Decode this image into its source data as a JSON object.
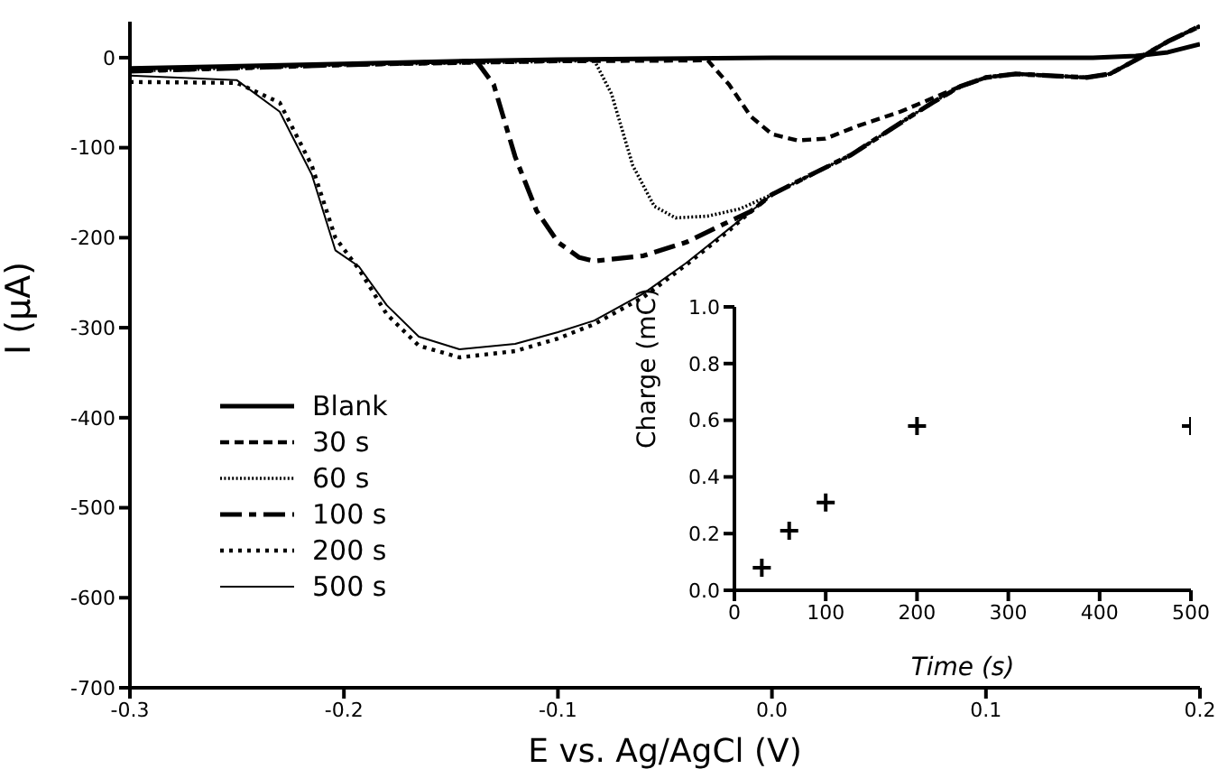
{
  "chart_data": [
    {
      "type": "line",
      "xlabel": "E vs. Ag/AgCl (V)",
      "ylabel": "I (µA)",
      "xlim": [
        -0.3,
        0.2
      ],
      "xticks": [
        -0.3,
        -0.2,
        -0.1,
        {
          "value": 0,
          "label": "0.0"
        },
        0.1,
        0.2
      ],
      "ylim": [
        -700,
        40
      ],
      "yticks": [
        0,
        -100,
        -200,
        -300,
        -400,
        -500,
        -600,
        -700
      ],
      "legend": "bottom left",
      "series": [
        {
          "name": "Blank",
          "color": "#000000",
          "line_style": "solid",
          "x": [
            -0.3,
            -0.2,
            -0.15,
            -0.1,
            0,
            0.15,
            0.17,
            0.185,
            0.2
          ],
          "values": [
            -12,
            -7,
            -4,
            -2,
            0,
            0,
            2,
            6,
            15
          ]
        },
        {
          "name": "30 s",
          "color": "#000000",
          "line_style": "dashed",
          "x": [
            -0.3,
            -0.2,
            -0.1,
            -0.03,
            -0.02,
            -0.01,
            0,
            0.012,
            0.025,
            0.04,
            0.06,
            0.075,
            0.088,
            0.1,
            0.114,
            0.13,
            0.147,
            0.158,
            0.172,
            0.185,
            0.2
          ],
          "values": [
            -15,
            -8,
            -4,
            -3,
            -30,
            -65,
            -85,
            -92,
            -90,
            -76,
            -60,
            -45,
            -32,
            -22,
            -18,
            -20,
            -22,
            -18,
            0,
            18,
            35
          ]
        },
        {
          "name": "60 s",
          "color": "#000000",
          "line_style": "dotted",
          "x": [
            -0.3,
            -0.2,
            -0.1,
            -0.083,
            -0.075,
            -0.065,
            -0.055,
            -0.045,
            -0.03,
            -0.015,
            0,
            0.02,
            0.037,
            0.05,
            0.063,
            0.075,
            0.088,
            0.1,
            0.114,
            0.13,
            0.147,
            0.158,
            0.172,
            0.185,
            0.2
          ],
          "values": [
            -15,
            -8,
            -4,
            -3,
            -40,
            -120,
            -165,
            -178,
            -176,
            -168,
            -152,
            -128,
            -108,
            -88,
            -68,
            -50,
            -32,
            -22,
            -18,
            -20,
            -22,
            -18,
            0,
            18,
            35
          ]
        },
        {
          "name": "100 s",
          "color": "#000000",
          "line_style": "dashed",
          "x": [
            -0.3,
            -0.2,
            -0.138,
            -0.13,
            -0.12,
            -0.11,
            -0.1,
            -0.09,
            -0.083,
            -0.06,
            -0.04,
            -0.02,
            -0.01,
            0,
            0.02,
            0.037,
            0.05,
            0.063,
            0.075,
            0.088,
            0.1,
            0.114,
            0.13,
            0.147,
            0.158,
            0.172,
            0.185,
            0.2
          ],
          "values": [
            -15,
            -8,
            -4,
            -30,
            -110,
            -170,
            -205,
            -222,
            -226,
            -220,
            -205,
            -182,
            -171,
            -152,
            -128,
            -108,
            -88,
            -68,
            -50,
            -32,
            -22,
            -18,
            -20,
            -22,
            -18,
            0,
            18,
            35
          ]
        },
        {
          "name": "200 s",
          "color": "#000000",
          "line_style": "dotted",
          "x": [
            -0.3,
            -0.25,
            -0.23,
            -0.215,
            -0.204,
            -0.193,
            -0.18,
            -0.165,
            -0.146,
            -0.12,
            -0.1,
            -0.083,
            -0.06,
            -0.04,
            -0.02,
            -0.01,
            0,
            0.02,
            0.037,
            0.05,
            0.063,
            0.075,
            0.088,
            0.1,
            0.114,
            0.13,
            0.147,
            0.158,
            0.172,
            0.185,
            0.2
          ],
          "values": [
            -27,
            -28,
            -50,
            -120,
            -200,
            -235,
            -285,
            -320,
            -333,
            -326,
            -312,
            -296,
            -266,
            -230,
            -192,
            -171,
            -152,
            -128,
            -108,
            -88,
            -68,
            -50,
            -32,
            -22,
            -18,
            -20,
            -22,
            -18,
            0,
            18,
            35
          ]
        },
        {
          "name": "500 s",
          "color": "#000000",
          "line_style": "solid",
          "x": [
            -0.3,
            -0.25,
            -0.23,
            -0.215,
            -0.204,
            -0.193,
            -0.18,
            -0.165,
            -0.146,
            -0.12,
            -0.1,
            -0.083,
            -0.06,
            -0.04,
            -0.02,
            -0.01,
            0,
            0.02,
            0.037,
            0.05,
            0.063,
            0.075,
            0.088,
            0.1,
            0.114,
            0.13,
            0.147,
            0.158,
            0.172,
            0.185,
            0.2
          ],
          "values": [
            -20,
            -25,
            -60,
            -130,
            -214,
            -232,
            -275,
            -310,
            -324,
            -318,
            -305,
            -292,
            -262,
            -228,
            -190,
            -171,
            -152,
            -128,
            -108,
            -88,
            -68,
            -50,
            -32,
            -22,
            -18,
            -20,
            -22,
            -18,
            0,
            18,
            35
          ]
        }
      ]
    },
    {
      "type": "scatter",
      "xlabel": "Time (s)",
      "ylabel": "Charge (mC)",
      "x": [
        30,
        60,
        100,
        200,
        500
      ],
      "values": [
        0.08,
        0.21,
        0.31,
        0.58,
        0.58
      ],
      "color": "#000000",
      "marker": "cross",
      "xlim": [
        0,
        500
      ],
      "xticks": [
        0,
        100,
        200,
        300,
        400,
        500
      ],
      "ylim": [
        0,
        1
      ],
      "yticks": [
        {
          "value": 0,
          "label": "0.0"
        },
        0.2,
        0.4,
        0.6,
        0.8,
        {
          "value": 1,
          "label": "1.0"
        }
      ]
    }
  ]
}
